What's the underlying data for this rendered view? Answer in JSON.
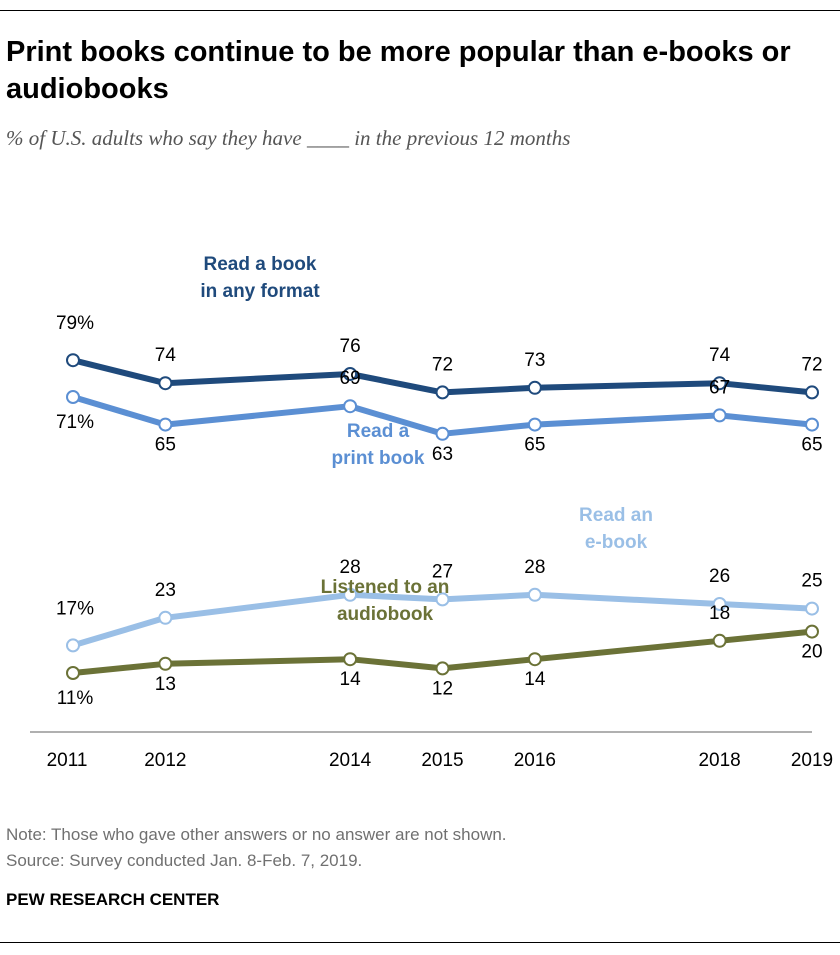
{
  "header": {
    "title": "Print books continue to be more popular than e-books or audiobooks",
    "subtitle": "% of U.S. adults who say they have ____ in the previous 12 months"
  },
  "footer": {
    "note": "Note: Those who gave other answers or no answer are not shown.",
    "source": "Source: Survey conducted Jan. 8-Feb. 7, 2019.",
    "brand": "PEW RESEARCH CENTER"
  },
  "colors": {
    "any_format": "#1f4a7c",
    "print": "#5b8fd3",
    "ebook": "#9abfe6",
    "audiobook": "#6b7237",
    "axis": "#b0b0b0"
  },
  "chart_data": {
    "type": "line",
    "x": [
      2011,
      2012,
      2014,
      2015,
      2016,
      2018,
      2019
    ],
    "x_tick_labels": [
      "2011",
      "2012",
      "2014",
      "2015",
      "2016",
      "2018",
      "2019"
    ],
    "ylim": [
      0,
      100
    ],
    "grid": false,
    "legend": "inline labels",
    "series": [
      {
        "name": "Read a book in any format",
        "name_lines": [
          "Read a book",
          "in any format"
        ],
        "color": "#1f4a7c",
        "values": [
          79,
          74,
          76,
          72,
          73,
          74,
          72
        ],
        "labels": [
          "79%",
          "74",
          "76",
          "72",
          "73",
          "74",
          "72"
        ]
      },
      {
        "name": "Read a print book",
        "name_lines": [
          "Read a",
          "print book"
        ],
        "color": "#5b8fd3",
        "values": [
          71,
          65,
          69,
          63,
          65,
          67,
          65
        ],
        "labels": [
          "71%",
          "65",
          "69",
          "63",
          "65",
          "67",
          "65"
        ]
      },
      {
        "name": "Read an e-book",
        "name_lines": [
          "Read an",
          "e-book"
        ],
        "color": "#9abfe6",
        "values": [
          17,
          23,
          28,
          27,
          28,
          26,
          25
        ],
        "labels": [
          "17%",
          "23",
          "28",
          "27",
          "28",
          "26",
          "25"
        ]
      },
      {
        "name": "Listened to an audiobook",
        "name_lines": [
          "Listened to an",
          "audiobook"
        ],
        "color": "#6b7237",
        "values": [
          11,
          13,
          14,
          12,
          14,
          18,
          20
        ],
        "labels": [
          "11%",
          "13",
          "14",
          "12",
          "14",
          "18",
          "20"
        ]
      }
    ]
  }
}
